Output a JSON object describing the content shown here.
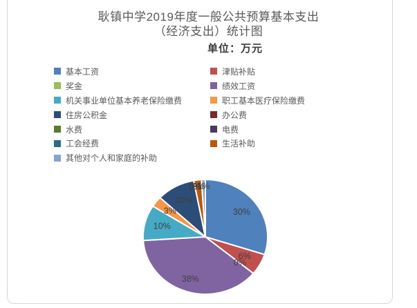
{
  "title": {
    "line1": "耿镇中学2019年度一般公共预算基本支出",
    "line2": "（经济支出）统计图",
    "unit_label": "单位：万元"
  },
  "chart_data": {
    "type": "pie",
    "title": "耿镇中学2019年度一般公共预算基本支出（经济支出）统计图",
    "unit": "万元",
    "labels": "percent-inside",
    "legend_position": "top-two-columns",
    "start_angle_deg": 0,
    "direction": "clockwise",
    "series": [
      {
        "name": "基本工资",
        "percent": 30,
        "color": "#4F81BD",
        "label": "30%"
      },
      {
        "name": "津贴补贴",
        "percent": 6,
        "color": "#C0504D",
        "label": "6%"
      },
      {
        "name": "奖金",
        "percent": 0,
        "color": "#9CBB59",
        "label": "0%"
      },
      {
        "name": "绩效工资",
        "percent": 38,
        "color": "#8064A2",
        "label": "38%"
      },
      {
        "name": "机关事业单位基本养老保险缴费",
        "percent": 10,
        "color": "#45AAC5",
        "label": "10%"
      },
      {
        "name": "职工基本医疗保险缴费",
        "percent": 3,
        "color": "#F79646",
        "label": "3%"
      },
      {
        "name": "住房公积金",
        "percent": 10,
        "color": "#2B4D77",
        "label": "10%"
      },
      {
        "name": "办公费",
        "percent": 0,
        "color": "#772C2A",
        "label": "0%"
      },
      {
        "name": "水费",
        "percent": 0,
        "color": "#5A7A2E",
        "label": "0%"
      },
      {
        "name": "电费",
        "percent": 0,
        "color": "#4A3A60",
        "label": "0%"
      },
      {
        "name": "工会经费",
        "percent": 0,
        "color": "#276F80",
        "label": "0%"
      },
      {
        "name": "生活补助",
        "percent": 2,
        "color": "#B85A08",
        "label": "2%"
      },
      {
        "name": "其他对个人和家庭的补助",
        "percent": 1,
        "color": "#84A3D8",
        "label": "1%"
      }
    ],
    "label_color": "#3f3f3f",
    "slice_border_color": "#ffffff"
  }
}
